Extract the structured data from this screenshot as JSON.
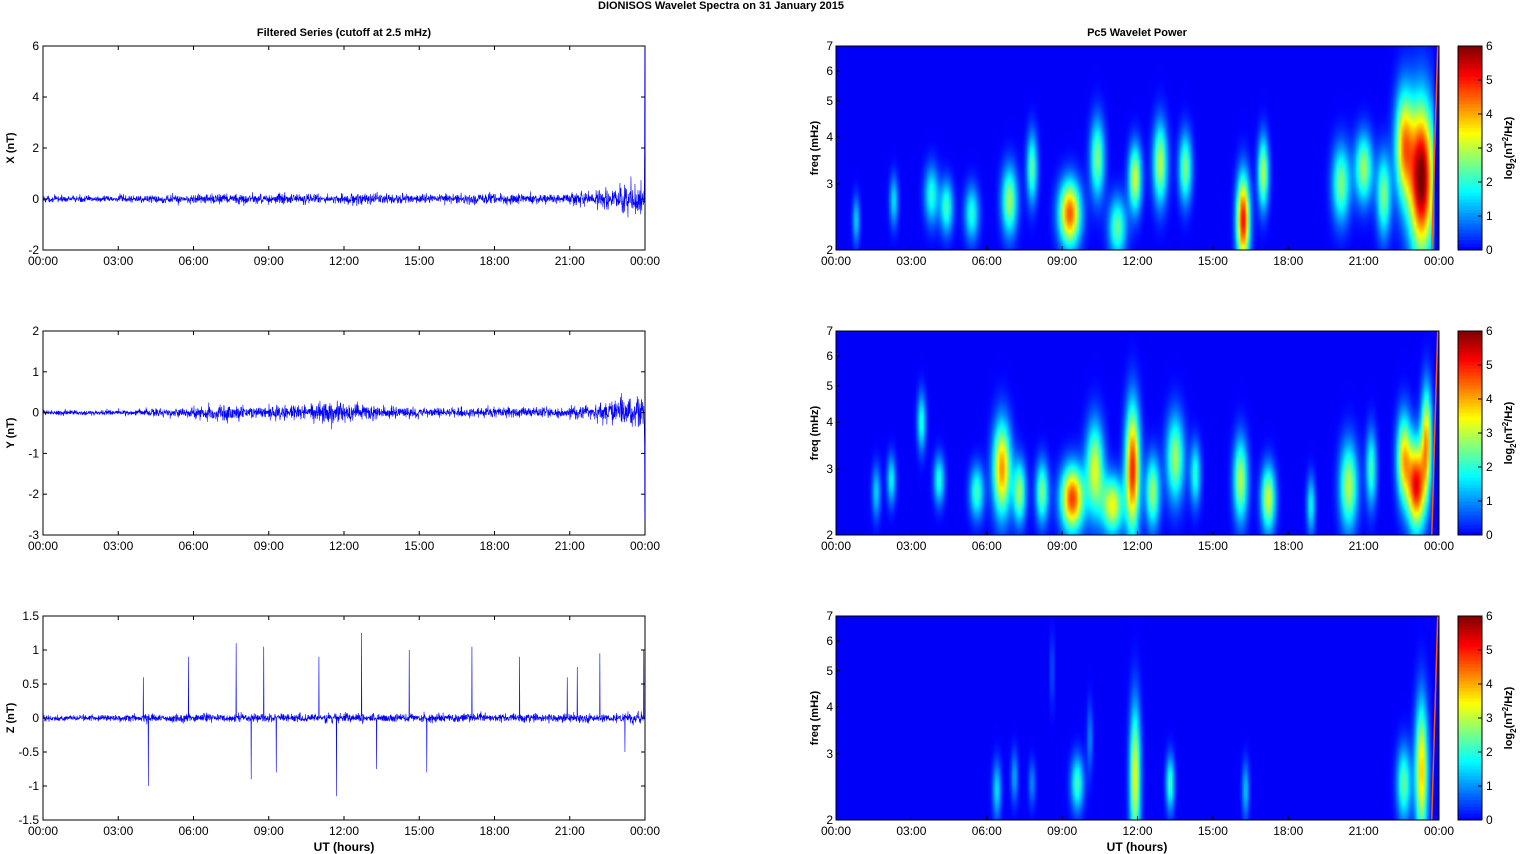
{
  "figure": {
    "title": "DIONISOS Wavelet Spectra on 31 January   2015",
    "left_title": "Filtered Series (cutoff at 2.5 mHz)",
    "right_title": "Pc5 Wavelet Power",
    "xlabel": "UT (hours)"
  },
  "chart_data": [
    {
      "type": "line",
      "ylabel": "X (nT)",
      "x_ticks": [
        "00:00",
        "03:00",
        "06:00",
        "09:00",
        "12:00",
        "15:00",
        "18:00",
        "21:00",
        "00:00"
      ],
      "xlim": [
        0,
        24
      ],
      "ylim": [
        -2,
        6
      ],
      "y_ticks": [
        "-2",
        "0",
        "2",
        "4",
        "6"
      ],
      "line_color": "#0000ff",
      "activity_profile": [
        0.2,
        0.2,
        0.2,
        0.25,
        0.25,
        0.3,
        0.3,
        0.3,
        0.3,
        0.35,
        0.3,
        0.3,
        0.3,
        0.3,
        0.3,
        0.3,
        0.3,
        0.35,
        0.3,
        0.3,
        0.3,
        0.4,
        0.6,
        1.0
      ],
      "final_spike": 5.9
    },
    {
      "type": "line",
      "ylabel": "Y (nT)",
      "x_ticks": [
        "00:00",
        "03:00",
        "06:00",
        "09:00",
        "12:00",
        "15:00",
        "18:00",
        "21:00",
        "00:00"
      ],
      "xlim": [
        0,
        24
      ],
      "ylim": [
        -3,
        2
      ],
      "y_ticks": [
        "-3",
        "-2",
        "-1",
        "0",
        "1",
        "2"
      ],
      "line_color": "#0000ff",
      "activity_profile": [
        0.1,
        0.1,
        0.1,
        0.12,
        0.15,
        0.2,
        0.3,
        0.3,
        0.2,
        0.3,
        0.3,
        0.45,
        0.35,
        0.25,
        0.2,
        0.2,
        0.2,
        0.2,
        0.2,
        0.2,
        0.2,
        0.25,
        0.4,
        0.6
      ],
      "final_spike": -2.6
    },
    {
      "type": "line",
      "ylabel": "Z (nT)",
      "x_ticks": [
        "00:00",
        "03:00",
        "06:00",
        "09:00",
        "12:00",
        "15:00",
        "18:00",
        "21:00",
        "00:00"
      ],
      "xlim": [
        0,
        24
      ],
      "ylim": [
        -1.5,
        1.5
      ],
      "y_ticks": [
        "-1.5",
        "-1",
        "-0.5",
        "0",
        "0.5",
        "1",
        "1.5"
      ],
      "line_color": "#0000ff",
      "activity_profile": [
        0.07,
        0.07,
        0.07,
        0.08,
        0.1,
        0.1,
        0.1,
        0.1,
        0.1,
        0.1,
        0.1,
        0.1,
        0.1,
        0.1,
        0.1,
        0.1,
        0.1,
        0.1,
        0.1,
        0.1,
        0.1,
        0.1,
        0.1,
        0.12
      ],
      "spikes": [
        [
          4.0,
          0.6
        ],
        [
          4.2,
          -1.0
        ],
        [
          5.8,
          0.9
        ],
        [
          7.7,
          1.1
        ],
        [
          8.3,
          -0.9
        ],
        [
          8.8,
          1.05
        ],
        [
          9.3,
          -0.8
        ],
        [
          11.0,
          0.9
        ],
        [
          11.7,
          -1.15
        ],
        [
          12.7,
          1.25
        ],
        [
          13.3,
          -0.75
        ],
        [
          14.6,
          1.0
        ],
        [
          15.3,
          -0.8
        ],
        [
          17.1,
          1.05
        ],
        [
          19.0,
          0.9
        ],
        [
          20.9,
          0.6
        ],
        [
          21.3,
          0.75
        ],
        [
          22.2,
          0.95
        ],
        [
          23.2,
          -0.5
        ],
        [
          23.95,
          1.0
        ]
      ]
    },
    {
      "type": "heatmap",
      "ylabel": "freq (mHz)",
      "colorbar_label": "log2(nT2/Hz)",
      "x_ticks": [
        "00:00",
        "03:00",
        "06:00",
        "09:00",
        "12:00",
        "15:00",
        "18:00",
        "21:00",
        "00:00"
      ],
      "xlim": [
        0,
        24
      ],
      "ylim": [
        2,
        7
      ],
      "y_scale": "log",
      "y_ticks": [
        "2",
        "3",
        "4",
        "5",
        "6",
        "7"
      ],
      "clim": [
        0,
        6
      ],
      "c_ticks": [
        "0",
        "1",
        "2",
        "3",
        "4",
        "5",
        "6"
      ],
      "blobs": [
        [
          0.8,
          2.4,
          0.1,
          0.25,
          1.5
        ],
        [
          2.3,
          2.7,
          0.12,
          0.3,
          1.6
        ],
        [
          3.8,
          2.8,
          0.2,
          0.35,
          2.0
        ],
        [
          4.4,
          2.6,
          0.18,
          0.3,
          2.2
        ],
        [
          5.4,
          2.5,
          0.2,
          0.3,
          2.0
        ],
        [
          6.9,
          2.7,
          0.22,
          0.4,
          2.8
        ],
        [
          7.8,
          3.3,
          0.15,
          0.5,
          2.4
        ],
        [
          9.3,
          2.5,
          0.3,
          0.35,
          4.6
        ],
        [
          10.4,
          3.5,
          0.2,
          0.6,
          2.6
        ],
        [
          11.2,
          2.3,
          0.25,
          0.3,
          2.4
        ],
        [
          11.9,
          3.1,
          0.18,
          0.45,
          3.2
        ],
        [
          12.9,
          3.4,
          0.2,
          0.6,
          3.0
        ],
        [
          13.9,
          3.3,
          0.18,
          0.5,
          2.6
        ],
        [
          16.2,
          2.4,
          0.18,
          0.45,
          5.2
        ],
        [
          17.0,
          3.2,
          0.15,
          0.5,
          3.0
        ],
        [
          20.1,
          3.0,
          0.25,
          0.5,
          2.6
        ],
        [
          21.0,
          3.3,
          0.25,
          0.5,
          2.8
        ],
        [
          21.8,
          2.8,
          0.2,
          0.5,
          2.6
        ],
        [
          22.6,
          3.8,
          0.25,
          0.9,
          3.8
        ],
        [
          23.3,
          3.1,
          0.35,
          1.0,
          6.2
        ]
      ],
      "edge_line_hours": 23.95
    },
    {
      "type": "heatmap",
      "ylabel": "freq (mHz)",
      "colorbar_label": "log2(nT2/Hz)",
      "x_ticks": [
        "00:00",
        "03:00",
        "06:00",
        "09:00",
        "12:00",
        "15:00",
        "18:00",
        "21:00",
        "00:00"
      ],
      "xlim": [
        0,
        24
      ],
      "ylim": [
        2,
        7
      ],
      "y_scale": "log",
      "y_ticks": [
        "2",
        "3",
        "4",
        "5",
        "6",
        "7"
      ],
      "clim": [
        0,
        6
      ],
      "c_ticks": [
        "0",
        "1",
        "2",
        "3",
        "4",
        "5",
        "6"
      ],
      "blobs": [
        [
          1.6,
          2.6,
          0.12,
          0.3,
          1.5
        ],
        [
          2.2,
          2.8,
          0.12,
          0.3,
          1.8
        ],
        [
          3.4,
          4.0,
          0.12,
          0.5,
          2.0
        ],
        [
          4.1,
          2.8,
          0.15,
          0.3,
          2.0
        ],
        [
          5.6,
          2.6,
          0.2,
          0.3,
          2.2
        ],
        [
          6.6,
          3.0,
          0.25,
          0.6,
          4.2
        ],
        [
          7.3,
          2.6,
          0.18,
          0.35,
          2.8
        ],
        [
          8.2,
          2.6,
          0.18,
          0.35,
          2.6
        ],
        [
          9.4,
          2.5,
          0.32,
          0.35,
          4.8
        ],
        [
          10.3,
          3.0,
          0.25,
          0.6,
          3.2
        ],
        [
          11.0,
          2.4,
          0.3,
          0.3,
          3.4
        ],
        [
          11.8,
          3.0,
          0.2,
          0.8,
          5.0
        ],
        [
          12.6,
          2.6,
          0.2,
          0.4,
          2.8
        ],
        [
          13.5,
          3.2,
          0.25,
          0.6,
          2.8
        ],
        [
          14.3,
          2.9,
          0.15,
          0.4,
          2.0
        ],
        [
          16.1,
          2.8,
          0.2,
          0.5,
          3.0
        ],
        [
          17.2,
          2.5,
          0.2,
          0.35,
          3.2
        ],
        [
          18.9,
          2.4,
          0.12,
          0.3,
          1.8
        ],
        [
          20.4,
          2.7,
          0.25,
          0.5,
          3.0
        ],
        [
          21.3,
          3.0,
          0.15,
          0.5,
          2.2
        ],
        [
          22.6,
          3.2,
          0.2,
          0.6,
          3.6
        ],
        [
          23.1,
          2.7,
          0.25,
          0.5,
          5.2
        ],
        [
          23.5,
          3.6,
          0.15,
          0.8,
          3.8
        ]
      ],
      "edge_line_hours": 23.95
    },
    {
      "type": "heatmap",
      "ylabel": "freq (mHz)",
      "colorbar_label": "log2(nT2/Hz)",
      "x_ticks": [
        "00:00",
        "03:00",
        "06:00",
        "09:00",
        "12:00",
        "15:00",
        "18:00",
        "21:00",
        "00:00"
      ],
      "xlim": [
        0,
        24
      ],
      "ylim": [
        2,
        7
      ],
      "y_scale": "log",
      "y_ticks": [
        "2",
        "3",
        "4",
        "5",
        "6",
        "7"
      ],
      "clim": [
        0,
        6
      ],
      "c_ticks": [
        "0",
        "1",
        "2",
        "3",
        "4",
        "5",
        "6"
      ],
      "blobs": [
        [
          6.4,
          2.4,
          0.12,
          0.3,
          1.6
        ],
        [
          7.1,
          2.6,
          0.1,
          0.3,
          1.2
        ],
        [
          7.8,
          2.5,
          0.1,
          0.25,
          1.0
        ],
        [
          8.6,
          5.0,
          0.05,
          0.8,
          0.8
        ],
        [
          9.6,
          2.5,
          0.18,
          0.3,
          2.2
        ],
        [
          10.1,
          3.3,
          0.08,
          0.5,
          1.0
        ],
        [
          11.9,
          2.6,
          0.15,
          0.8,
          3.4
        ],
        [
          13.3,
          2.5,
          0.12,
          0.3,
          2.2
        ],
        [
          16.3,
          2.4,
          0.1,
          0.3,
          1.4
        ],
        [
          22.6,
          2.5,
          0.2,
          0.4,
          2.4
        ],
        [
          23.3,
          2.7,
          0.18,
          0.8,
          3.8
        ]
      ],
      "edge_line_hours": 23.95
    }
  ]
}
